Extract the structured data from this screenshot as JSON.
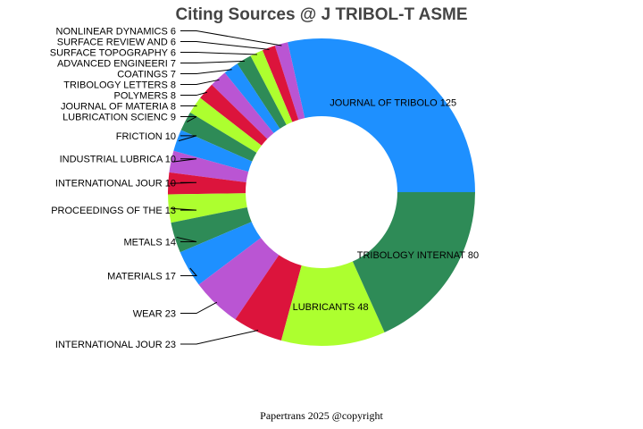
{
  "chart_data": {
    "type": "pie",
    "donut": true,
    "title": "Citing Sources @ J TRIBOL-T ASME",
    "footer": "Papertrans 2025 @copyright",
    "slices": [
      {
        "label": "JOURNAL OF TRIBOLO 125",
        "value": 125,
        "color": "#1E90FF"
      },
      {
        "label": "NONLINEAR DYNAMICS 6",
        "value": 6,
        "color": "#BA55D3"
      },
      {
        "label": "SURFACE REVIEW AND 6",
        "value": 6,
        "color": "#DC143C"
      },
      {
        "label": "SURFACE TOPOGRAPHY 6",
        "value": 6,
        "color": "#ADFF2F"
      },
      {
        "label": "ADVANCED ENGINEERI 7",
        "value": 7,
        "color": "#2E8B57"
      },
      {
        "label": "COATINGS 7",
        "value": 7,
        "color": "#1E90FF"
      },
      {
        "label": "TRIBOLOGY LETTERS 8",
        "value": 8,
        "color": "#BA55D3"
      },
      {
        "label": "POLYMERS 8",
        "value": 8,
        "color": "#DC143C"
      },
      {
        "label": "JOURNAL OF MATERIA 8",
        "value": 8,
        "color": "#ADFF2F"
      },
      {
        "label": "LUBRICATION SCIENC 9",
        "value": 9,
        "color": "#2E8B57"
      },
      {
        "label": "FRICTION 10",
        "value": 10,
        "color": "#1E90FF"
      },
      {
        "label": "INDUSTRIAL LUBRICA 10",
        "value": 10,
        "color": "#BA55D3"
      },
      {
        "label": "INTERNATIONAL JOUR 10",
        "value": 10,
        "color": "#DC143C"
      },
      {
        "label": "PROCEEDINGS OF THE 13",
        "value": 13,
        "color": "#ADFF2F"
      },
      {
        "label": "METALS 14",
        "value": 14,
        "color": "#2E8B57"
      },
      {
        "label": "MATERIALS 17",
        "value": 17,
        "color": "#1E90FF"
      },
      {
        "label": "WEAR 23",
        "value": 23,
        "color": "#BA55D3"
      },
      {
        "label": "INTERNATIONAL JOUR 23",
        "value": 23,
        "color": "#DC143C"
      },
      {
        "label": "LUBRICANTS 48",
        "value": 48,
        "color": "#ADFF2F"
      },
      {
        "label": "TRIBOLOGY INTERNAT 80",
        "value": 80,
        "color": "#2E8B57"
      }
    ]
  }
}
